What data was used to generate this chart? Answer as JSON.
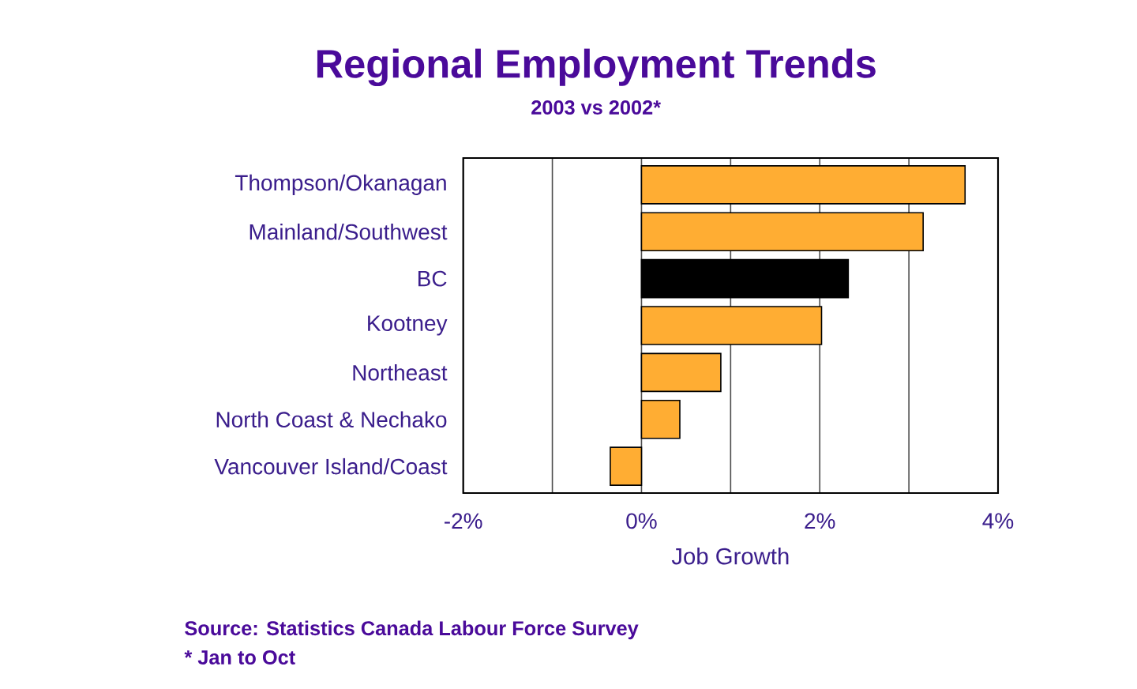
{
  "chart_data": {
    "type": "bar",
    "orientation": "horizontal",
    "title": "Regional Employment Trends",
    "subtitle": "2003 vs 2002*",
    "xlabel": "Job Growth",
    "categories": [
      "Thompson/Okanagan",
      "Mainland/Southwest",
      "BC",
      "Kootney",
      "Northeast",
      "North Coast & Nechako",
      "Vancouver Island/Coast"
    ],
    "values": [
      3.63,
      3.16,
      2.32,
      2.02,
      0.89,
      0.43,
      -0.35
    ],
    "colors": [
      "#ffad33",
      "#ffad33",
      "#000000",
      "#ffad33",
      "#ffad33",
      "#ffad33",
      "#ffad33"
    ],
    "xlim": [
      -2,
      4
    ],
    "xticks": [
      {
        "value": -2,
        "label": "-2%"
      },
      {
        "value": -1,
        "label": null
      },
      {
        "value": 0,
        "label": "0%"
      },
      {
        "value": 1,
        "label": null
      },
      {
        "value": 2,
        "label": "2%"
      },
      {
        "value": 3,
        "label": null
      },
      {
        "value": 4,
        "label": "4%"
      }
    ],
    "grid": "x",
    "annotations": [
      "Source: Statistics Canada Labour Force Survey",
      "* Jan to Oct"
    ]
  }
}
